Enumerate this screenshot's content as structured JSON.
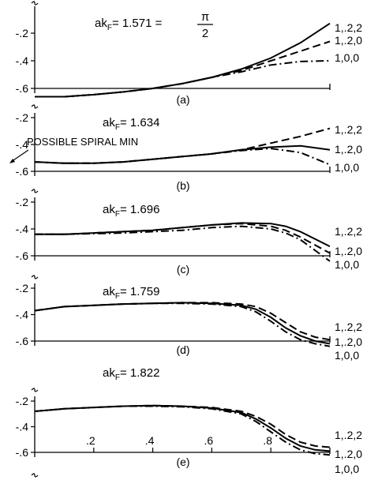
{
  "chart_data": [
    {
      "type": "line",
      "panel_label": "(a)",
      "ak_prefix": "ak",
      "ak_sub": "F",
      "ak_value": "= 1.571 =",
      "ak_fraction": {
        "num": "π",
        "den": "2"
      },
      "ylim": [
        -0.6,
        -0.1
      ],
      "xlim": [
        0,
        1
      ],
      "yticks": [
        "-.2",
        "-.4",
        "-.6"
      ],
      "yticks_values": [
        -0.2,
        -0.4,
        -0.6
      ],
      "xticks": [],
      "xticks_values": [],
      "annotation": "",
      "series": [
        {
          "name": "1,.2,2",
          "style": "solid",
          "x": [
            0,
            0.1,
            0.2,
            0.3,
            0.4,
            0.5,
            0.6,
            0.7,
            0.8,
            0.9,
            1.0
          ],
          "values": [
            -0.66,
            -0.66,
            -0.645,
            -0.625,
            -0.6,
            -0.565,
            -0.52,
            -0.46,
            -0.38,
            -0.27,
            -0.13
          ]
        },
        {
          "name": "1,.2,0",
          "style": "dashed",
          "x": [
            0,
            0.1,
            0.2,
            0.3,
            0.4,
            0.5,
            0.6,
            0.7,
            0.8,
            0.9,
            1.0
          ],
          "values": [
            -0.66,
            -0.66,
            -0.645,
            -0.625,
            -0.6,
            -0.565,
            -0.52,
            -0.47,
            -0.4,
            -0.33,
            -0.26
          ]
        },
        {
          "name": "1,0,0",
          "style": "dashdot",
          "x": [
            0,
            0.1,
            0.2,
            0.3,
            0.4,
            0.5,
            0.6,
            0.7,
            0.8,
            0.9,
            1.0
          ],
          "values": [
            -0.66,
            -0.66,
            -0.645,
            -0.625,
            -0.6,
            -0.565,
            -0.52,
            -0.48,
            -0.43,
            -0.405,
            -0.4
          ]
        }
      ]
    },
    {
      "type": "line",
      "panel_label": "(b)",
      "ak_prefix": "ak",
      "ak_sub": "F",
      "ak_value": "= 1.634",
      "ak_fraction": null,
      "ylim": [
        -0.6,
        -0.2
      ],
      "xlim": [
        0,
        1
      ],
      "yticks": [
        "-.2",
        "-.4",
        "-.6"
      ],
      "yticks_values": [
        -0.2,
        -0.4,
        -0.6
      ],
      "xticks": [],
      "xticks_values": [],
      "annotation": "POSSIBLE SPIRAL MIN",
      "series": [
        {
          "name": "1,.2,2",
          "style": "dashed",
          "x": [
            0,
            0.1,
            0.2,
            0.3,
            0.4,
            0.5,
            0.6,
            0.7,
            0.8,
            0.9,
            1.0
          ],
          "values": [
            -0.53,
            -0.54,
            -0.54,
            -0.53,
            -0.51,
            -0.49,
            -0.47,
            -0.44,
            -0.39,
            -0.34,
            -0.28
          ]
        },
        {
          "name": "1,.2,0",
          "style": "solid",
          "x": [
            0,
            0.1,
            0.2,
            0.3,
            0.4,
            0.5,
            0.6,
            0.7,
            0.8,
            0.9,
            1.0
          ],
          "values": [
            -0.53,
            -0.54,
            -0.54,
            -0.53,
            -0.51,
            -0.49,
            -0.47,
            -0.44,
            -0.42,
            -0.41,
            -0.44
          ]
        },
        {
          "name": "1,0,0",
          "style": "dashdot",
          "x": [
            0,
            0.1,
            0.2,
            0.3,
            0.4,
            0.5,
            0.6,
            0.7,
            0.8,
            0.9,
            1.0
          ],
          "values": [
            -0.53,
            -0.54,
            -0.54,
            -0.53,
            -0.51,
            -0.49,
            -0.47,
            -0.445,
            -0.43,
            -0.46,
            -0.55
          ]
        }
      ]
    },
    {
      "type": "line",
      "panel_label": "(c)",
      "ak_prefix": "ak",
      "ak_sub": "F",
      "ak_value": "= 1.696",
      "ak_fraction": null,
      "ylim": [
        -0.6,
        -0.2
      ],
      "xlim": [
        0,
        1
      ],
      "yticks": [
        "-.2",
        "-.4",
        "-.6"
      ],
      "yticks_values": [
        -0.2,
        -0.4,
        -0.6
      ],
      "xticks": [],
      "xticks_values": [],
      "annotation": "",
      "series": [
        {
          "name": "1,.2,2",
          "style": "solid",
          "x": [
            0,
            0.1,
            0.2,
            0.3,
            0.4,
            0.5,
            0.6,
            0.7,
            0.8,
            0.85,
            0.9,
            1.0
          ],
          "values": [
            -0.44,
            -0.44,
            -0.43,
            -0.42,
            -0.41,
            -0.39,
            -0.37,
            -0.355,
            -0.36,
            -0.38,
            -0.42,
            -0.53
          ]
        },
        {
          "name": "1,.2,0",
          "style": "dashed",
          "x": [
            0,
            0.1,
            0.2,
            0.3,
            0.4,
            0.5,
            0.6,
            0.7,
            0.8,
            0.85,
            0.9,
            1.0
          ],
          "values": [
            -0.44,
            -0.44,
            -0.43,
            -0.42,
            -0.41,
            -0.39,
            -0.37,
            -0.36,
            -0.38,
            -0.41,
            -0.46,
            -0.58
          ]
        },
        {
          "name": "1,0,0",
          "style": "dashdot",
          "x": [
            0,
            0.1,
            0.2,
            0.3,
            0.4,
            0.5,
            0.6,
            0.7,
            0.8,
            0.85,
            0.9,
            1.0
          ],
          "values": [
            -0.44,
            -0.44,
            -0.435,
            -0.43,
            -0.42,
            -0.41,
            -0.39,
            -0.38,
            -0.4,
            -0.43,
            -0.48,
            -0.64
          ]
        }
      ]
    },
    {
      "type": "line",
      "panel_label": "(d)",
      "ak_prefix": "ak",
      "ak_sub": "F",
      "ak_value": "= 1.759",
      "ak_fraction": null,
      "ylim": [
        -0.6,
        -0.2
      ],
      "xlim": [
        0,
        1
      ],
      "yticks": [
        "-.2",
        "-.4",
        "-.6"
      ],
      "yticks_values": [
        -0.2,
        -0.4,
        -0.6
      ],
      "xticks": [],
      "xticks_values": [],
      "annotation": "",
      "series": [
        {
          "name": "1,.2,2",
          "style": "dashed",
          "x": [
            0,
            0.1,
            0.2,
            0.3,
            0.4,
            0.5,
            0.6,
            0.7,
            0.75,
            0.8,
            0.85,
            0.9,
            0.95,
            1.0
          ],
          "values": [
            -0.37,
            -0.34,
            -0.33,
            -0.32,
            -0.315,
            -0.31,
            -0.31,
            -0.32,
            -0.34,
            -0.39,
            -0.46,
            -0.53,
            -0.57,
            -0.59
          ]
        },
        {
          "name": "1,.2,0",
          "style": "solid",
          "x": [
            0,
            0.1,
            0.2,
            0.3,
            0.4,
            0.5,
            0.6,
            0.7,
            0.75,
            0.8,
            0.85,
            0.9,
            0.95,
            1.0
          ],
          "values": [
            -0.37,
            -0.34,
            -0.33,
            -0.32,
            -0.315,
            -0.31,
            -0.315,
            -0.33,
            -0.36,
            -0.42,
            -0.5,
            -0.56,
            -0.6,
            -0.62
          ]
        },
        {
          "name": "1,0,0",
          "style": "dashdot",
          "x": [
            0,
            0.1,
            0.2,
            0.3,
            0.4,
            0.5,
            0.6,
            0.7,
            0.75,
            0.8,
            0.85,
            0.9,
            0.95,
            1.0
          ],
          "values": [
            -0.37,
            -0.34,
            -0.33,
            -0.32,
            -0.315,
            -0.315,
            -0.32,
            -0.34,
            -0.38,
            -0.45,
            -0.53,
            -0.59,
            -0.62,
            -0.64
          ]
        }
      ]
    },
    {
      "type": "line",
      "panel_label": "(e)",
      "ak_prefix": "ak",
      "ak_sub": "F",
      "ak_value": "= 1.822",
      "ak_fraction": null,
      "ylim": [
        -0.6,
        -0.2
      ],
      "xlim": [
        0,
        1
      ],
      "yticks": [
        "-.2",
        "-.4",
        "-.6"
      ],
      "yticks_values": [
        -0.2,
        -0.4,
        -0.6
      ],
      "xticks": [
        ".2",
        ".4",
        ".6",
        ".8"
      ],
      "xticks_values": [
        0.2,
        0.4,
        0.6,
        0.8
      ],
      "annotation": "",
      "series": [
        {
          "name": "1,.2,2",
          "style": "dashed",
          "x": [
            0,
            0.1,
            0.2,
            0.3,
            0.4,
            0.5,
            0.6,
            0.7,
            0.75,
            0.8,
            0.85,
            0.9,
            0.95,
            1.0
          ],
          "values": [
            -0.28,
            -0.26,
            -0.25,
            -0.24,
            -0.235,
            -0.24,
            -0.25,
            -0.28,
            -0.32,
            -0.38,
            -0.46,
            -0.52,
            -0.55,
            -0.56
          ]
        },
        {
          "name": "1,.2,0",
          "style": "solid",
          "x": [
            0,
            0.1,
            0.2,
            0.3,
            0.4,
            0.5,
            0.6,
            0.7,
            0.75,
            0.8,
            0.85,
            0.9,
            0.95,
            1.0
          ],
          "values": [
            -0.28,
            -0.26,
            -0.25,
            -0.24,
            -0.235,
            -0.24,
            -0.255,
            -0.29,
            -0.34,
            -0.41,
            -0.49,
            -0.55,
            -0.58,
            -0.59
          ]
        },
        {
          "name": "1,0,0",
          "style": "dashdot",
          "x": [
            0,
            0.1,
            0.2,
            0.3,
            0.4,
            0.5,
            0.6,
            0.7,
            0.75,
            0.8,
            0.85,
            0.9,
            0.95,
            1.0
          ],
          "values": [
            -0.28,
            -0.26,
            -0.25,
            -0.24,
            -0.24,
            -0.245,
            -0.26,
            -0.3,
            -0.36,
            -0.44,
            -0.52,
            -0.58,
            -0.61,
            -0.62
          ]
        }
      ]
    }
  ]
}
